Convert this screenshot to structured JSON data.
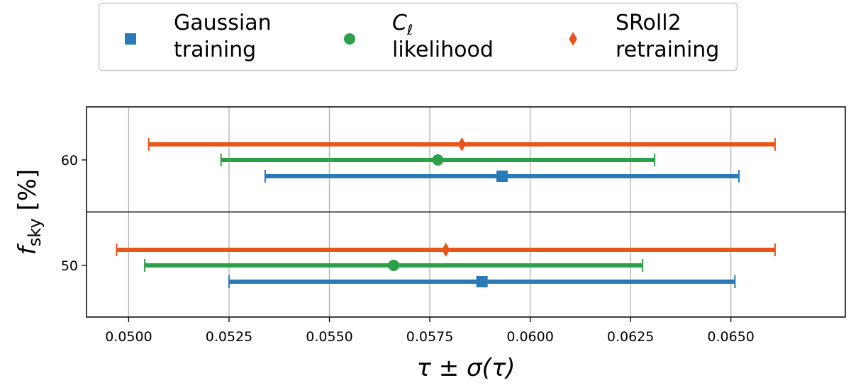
{
  "chart_data": {
    "type": "errorbar",
    "xlabel": "τ ± σ(τ)",
    "ylabel_main": "f",
    "ylabel_sub": "sky",
    "ylabel_unit": " [%]",
    "x_ticks": [
      "0.0500",
      "0.0525",
      "0.0550",
      "0.0575",
      "0.0600",
      "0.0625",
      "0.0650"
    ],
    "x_tick_values": [
      0.05,
      0.0525,
      0.055,
      0.0575,
      0.06,
      0.0625,
      0.065
    ],
    "xlim": [
      0.04895,
      0.06785
    ],
    "grid_x": true,
    "legend_position": "top-center",
    "legend": [
      {
        "name": "gaussian",
        "lines": [
          "Gaussian",
          "training"
        ],
        "marker": "square",
        "color": "#2a7ab8"
      },
      {
        "name": "cl",
        "lines": [
          "C",
          "likelihood"
        ],
        "sub": "ℓ",
        "marker": "circle",
        "color": "#2ca048"
      },
      {
        "name": "sroll2",
        "lines": [
          "SRoll2",
          "retraining"
        ],
        "marker": "diamond",
        "color": "#e8541a"
      }
    ],
    "groups": [
      {
        "label": "60",
        "entries": [
          {
            "series": "sroll2",
            "center": 0.0583,
            "low": 0.0505,
            "high": 0.0661
          },
          {
            "series": "cl",
            "center": 0.0577,
            "low": 0.0523,
            "high": 0.0631
          },
          {
            "series": "gaussian",
            "center": 0.0593,
            "low": 0.0534,
            "high": 0.0652
          }
        ]
      },
      {
        "label": "50",
        "entries": [
          {
            "series": "sroll2",
            "center": 0.0579,
            "low": 0.0497,
            "high": 0.0661
          },
          {
            "series": "cl",
            "center": 0.0566,
            "low": 0.0504,
            "high": 0.0628
          },
          {
            "series": "gaussian",
            "center": 0.0588,
            "low": 0.0525,
            "high": 0.0651
          }
        ]
      }
    ]
  }
}
